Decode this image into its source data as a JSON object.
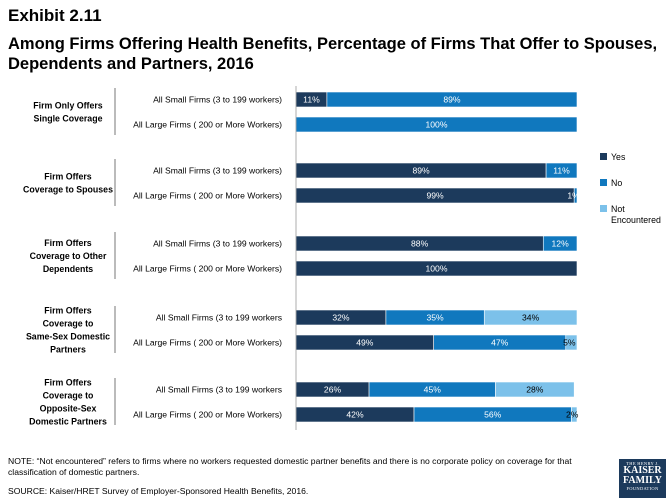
{
  "exhibit": "Exhibit 2.11",
  "title": "Among Firms Offering Health Benefits, Percentage of Firms That Offer to Spouses, Dependents and Partners, 2016",
  "note": "NOTE: “Not encountered” refers to firms where no workers requested domestic partner benefits and there is no corporate policy on coverage for that classification of domestic partners.",
  "source": "SOURCE: Kaiser/HRET Survey of Employer-Sponsored Health Benefits, 2016.",
  "logo": {
    "line1": "THE HENRY J.",
    "line2": "KAISER",
    "line3": "FAMILY",
    "line4": "FOUNDATION"
  },
  "colors": {
    "yes": "#1c3a5c",
    "no": "#1078be",
    "not_encountered": "#7cc1ea"
  },
  "chart_data": {
    "type": "bar",
    "orientation": "horizontal",
    "stacked": true,
    "xlim": [
      0,
      100
    ],
    "legend": {
      "placement": "right",
      "entries": [
        "Yes",
        "No",
        "Not Encountered"
      ]
    },
    "groups": [
      {
        "label": "Firm Only Offers Single Coverage",
        "rows": [
          {
            "label": "All Small Firms (3 to 199 workers)",
            "values": [
              11,
              89,
              0
            ],
            "labels": [
              "11%",
              "89%",
              ""
            ]
          },
          {
            "label": "All Large Firms ( 200 or More Workers)",
            "values": [
              0,
              100,
              0
            ],
            "labels": [
              "",
              "100%",
              ""
            ]
          }
        ]
      },
      {
        "label": "Firm Offers Coverage to Spouses",
        "rows": [
          {
            "label": "All Small Firms (3 to 199 workers)",
            "values": [
              89,
              11,
              0
            ],
            "labels": [
              "89%",
              "11%",
              ""
            ]
          },
          {
            "label": "All Large Firms ( 200 or More Workers)",
            "values": [
              99,
              1,
              0
            ],
            "labels": [
              "99%",
              "1%",
              ""
            ]
          }
        ]
      },
      {
        "label": "Firm Offers Coverage to Other Dependents",
        "rows": [
          {
            "label": "All Small Firms (3 to 199 workers)",
            "values": [
              88,
              12,
              0
            ],
            "labels": [
              "88%",
              "12%",
              ""
            ]
          },
          {
            "label": "All Large Firms ( 200 or More Workers)",
            "values": [
              100,
              0,
              0
            ],
            "labels": [
              "100%",
              "",
              ""
            ]
          }
        ]
      },
      {
        "label": "Firm Offers Coverage to Same-Sex Domestic Partners",
        "rows": [
          {
            "label": "All Small Firms (3 to 199 workers",
            "values": [
              32,
              35,
              34
            ],
            "labels": [
              "32%",
              "35%",
              "34%"
            ]
          },
          {
            "label": "All Large Firms ( 200 or More Workers)",
            "values": [
              49,
              47,
              5
            ],
            "labels": [
              "49%",
              "47%",
              "5%"
            ]
          }
        ]
      },
      {
        "label": "Firm Offers Coverage to Opposite-Sex Domestic Partners",
        "rows": [
          {
            "label": "All Small Firms (3 to 199 workers",
            "values": [
              26,
              45,
              28
            ],
            "labels": [
              "26%",
              "45%",
              "28%"
            ]
          },
          {
            "label": "All Large Firms ( 200 or More Workers)",
            "values": [
              42,
              56,
              2
            ],
            "labels": [
              "42%",
              "56%",
              "2%"
            ]
          }
        ]
      }
    ]
  }
}
